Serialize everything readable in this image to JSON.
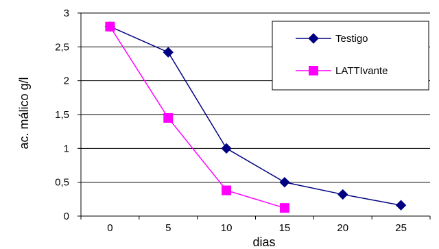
{
  "chart_data": {
    "type": "line",
    "title": "",
    "xlabel": "dias",
    "ylabel": "ac. málico g/l",
    "categories": [
      "0",
      "5",
      "10",
      "15",
      "20",
      "25"
    ],
    "ylim": [
      0,
      3
    ],
    "yticks": [
      "0",
      "0,5",
      "1",
      "1,5",
      "2",
      "2,5",
      "3"
    ],
    "ytick_values": [
      0,
      0.5,
      1,
      1.5,
      2,
      2.5,
      3
    ],
    "grid": "horizontal major gridlines",
    "legend_position": "top-right, inside plot",
    "series": [
      {
        "name": "Testigo",
        "color": "#000080",
        "marker": "diamond",
        "values": [
          2.8,
          2.42,
          1.0,
          0.5,
          0.32,
          0.16
        ]
      },
      {
        "name": "LATTIvante",
        "color": "#FF00FF",
        "marker": "square",
        "values": [
          2.8,
          1.45,
          0.38,
          0.12,
          null,
          null
        ]
      }
    ]
  }
}
